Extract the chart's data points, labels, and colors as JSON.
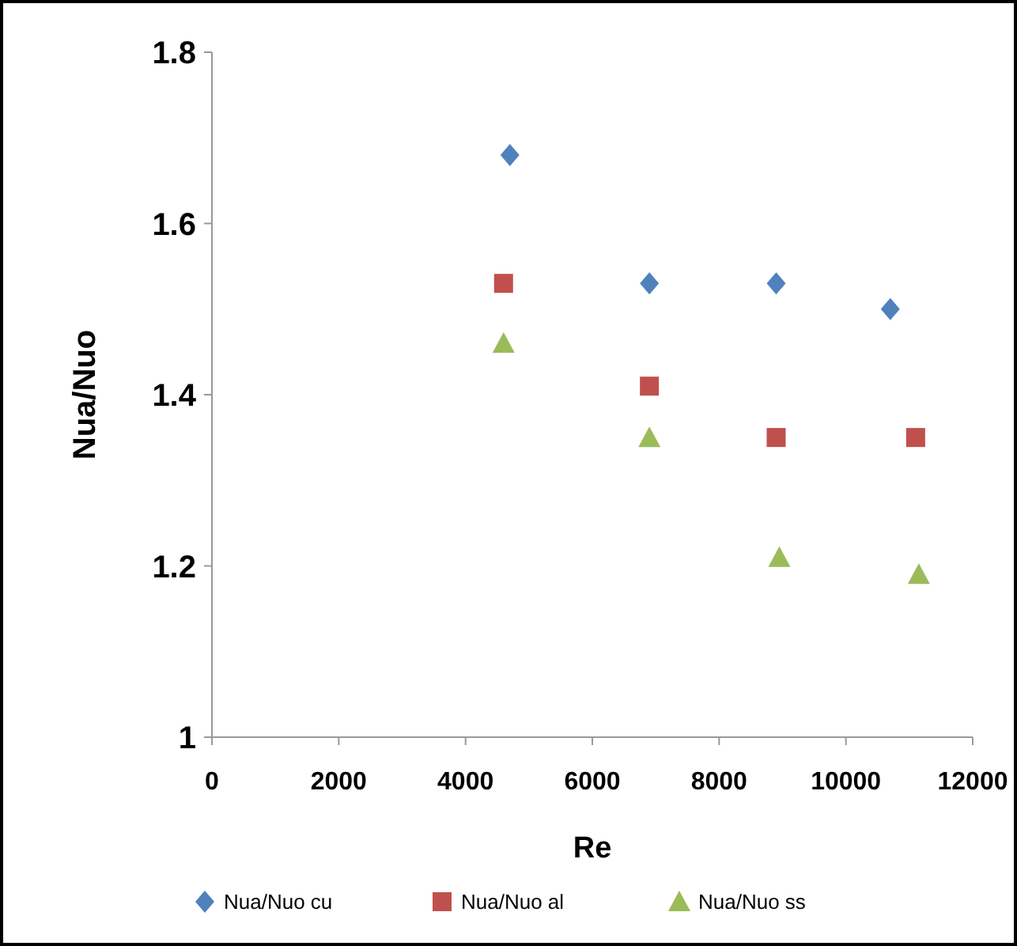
{
  "chart_data": {
    "type": "scatter",
    "xlabel": "Re",
    "ylabel": "Nua/Nuo",
    "xlim": [
      0,
      12000
    ],
    "xticks": [
      0,
      2000,
      4000,
      6000,
      8000,
      10000,
      12000
    ],
    "ylim": [
      1,
      1.8
    ],
    "yticks": [
      1,
      1.2,
      1.4,
      1.6,
      1.8
    ],
    "grid": false,
    "legend": "bottom",
    "series": [
      {
        "name": "Nua/Nuo cu",
        "color": "#4f81bd",
        "marker": "diamond",
        "x": [
          4700,
          6900,
          8900,
          10700
        ],
        "values": [
          1.68,
          1.53,
          1.53,
          1.5
        ]
      },
      {
        "name": "Nua/Nuo al",
        "color": "#c0504d",
        "marker": "square",
        "x": [
          4600,
          6900,
          8900,
          11100
        ],
        "values": [
          1.53,
          1.41,
          1.35,
          1.35
        ]
      },
      {
        "name": "Nua/Nuo ss",
        "color": "#9bbb59",
        "marker": "triangle",
        "x": [
          4600,
          6900,
          8950,
          11150
        ],
        "values": [
          1.46,
          1.35,
          1.21,
          1.19
        ]
      }
    ]
  }
}
